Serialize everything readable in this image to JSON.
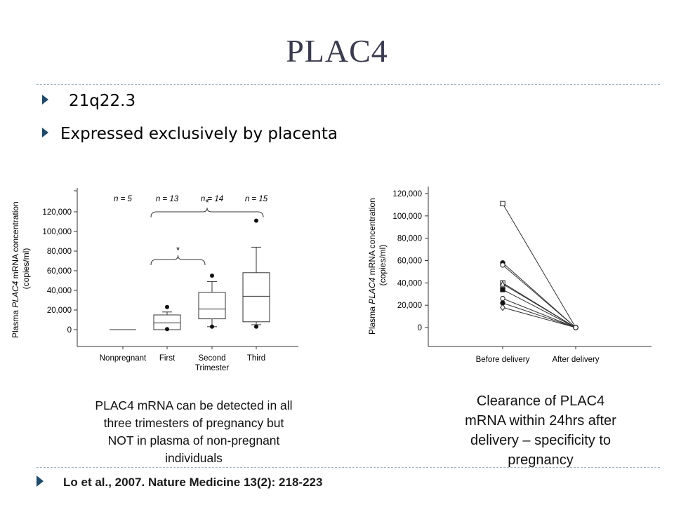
{
  "slide": {
    "title": "PLAC4",
    "bullets": [
      "21q22.3",
      "Expressed exclusively by placenta"
    ],
    "left_caption": [
      "PLAC4 mRNA can be detected in all",
      "three trimesters of pregnancy but",
      "NOT in plasma of non-pregnant",
      "individuals"
    ],
    "right_caption": [
      "Clearance of PLAC4",
      "mRNA within 24hrs after",
      "delivery – specificity to",
      "pregnancy"
    ],
    "reference": "Lo et al., 2007. Nature Medicine 13(2): 218-223"
  },
  "chart_data": [
    {
      "type": "box",
      "ylabel": "Plasma PLAC4 mRNA concentration (copies/ml)",
      "yticks": [
        "0",
        "20,000",
        "40,000",
        "60,000",
        "80,000",
        "100,000",
        "120,000"
      ],
      "ylim": [
        0,
        130000
      ],
      "categories": [
        "Nonpregnant",
        "First",
        "Second\nTrimester",
        "Third"
      ],
      "n_labels": [
        "n = 5",
        "n = 13",
        "n = 14",
        "n = 15"
      ],
      "significance": [
        "*",
        "*"
      ],
      "boxes": [
        {
          "category": "Nonpregnant",
          "min": 0,
          "q1": 0,
          "median": 0,
          "q3": 0,
          "max": 0,
          "outliers": []
        },
        {
          "category": "First",
          "min": 0,
          "q1": 0,
          "median": 7000,
          "q3": 15000,
          "max": 18000,
          "outliers": [
            23000,
            500
          ]
        },
        {
          "category": "Second",
          "min": 3000,
          "q1": 11000,
          "median": 21000,
          "q3": 38000,
          "max": 49000,
          "outliers": [
            55000,
            3000
          ]
        },
        {
          "category": "Third",
          "min": 5000,
          "q1": 8000,
          "median": 34000,
          "q3": 58000,
          "max": 84000,
          "outliers": [
            111000,
            3000
          ]
        }
      ]
    },
    {
      "type": "line",
      "ylabel": "Plasma PLAC4 mRNA concentration (copies/ml)",
      "yticks": [
        "0",
        "20,000",
        "40,000",
        "60,000",
        "80,000",
        "100,000",
        "120,000"
      ],
      "ylim": [
        0,
        120000
      ],
      "categories": [
        "Before delivery",
        "After delivery"
      ],
      "series": [
        {
          "marker": "open-square",
          "values": [
            111000,
            0
          ]
        },
        {
          "marker": "filled-circle",
          "values": [
            58000,
            0
          ]
        },
        {
          "marker": "open-circle",
          "values": [
            56000,
            0
          ]
        },
        {
          "marker": "open-square",
          "values": [
            40000,
            0
          ]
        },
        {
          "marker": "open-triangle",
          "values": [
            39000,
            0
          ]
        },
        {
          "marker": "filled-square",
          "values": [
            34000,
            0
          ]
        },
        {
          "marker": "open-circle",
          "values": [
            26000,
            0
          ]
        },
        {
          "marker": "filled-circle",
          "values": [
            22000,
            0
          ]
        },
        {
          "marker": "open-diamond",
          "values": [
            18000,
            0
          ]
        }
      ]
    }
  ]
}
